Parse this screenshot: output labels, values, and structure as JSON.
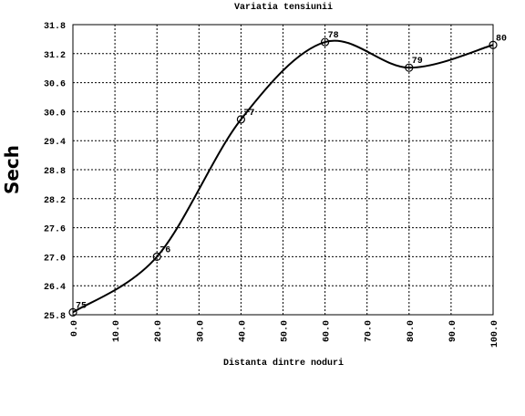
{
  "chart_data": {
    "type": "line",
    "title": "Variatia tensiunii",
    "xlabel": "Distanta dintre noduri",
    "ylabel": "Sech",
    "x": [
      0,
      20,
      40,
      60,
      80,
      100
    ],
    "series": [
      {
        "name": "Sech",
        "color": "#000000",
        "values": [
          25.85,
          27.0,
          29.84,
          31.44,
          30.91,
          31.38
        ],
        "point_labels": [
          "75",
          "76",
          "77",
          "78",
          "79",
          "80"
        ]
      }
    ],
    "xlim": [
      0,
      100
    ],
    "xticks": [
      {
        "value": 0,
        "label": "0.0"
      },
      {
        "value": 10,
        "label": "10.0"
      },
      {
        "value": 20,
        "label": "20.0"
      },
      {
        "value": 30,
        "label": "30.0"
      },
      {
        "value": 40,
        "label": "40.0"
      },
      {
        "value": 50,
        "label": "50.0"
      },
      {
        "value": 60,
        "label": "60.0"
      },
      {
        "value": 70,
        "label": "70.0"
      },
      {
        "value": 80,
        "label": "80.0"
      },
      {
        "value": 90,
        "label": "90.0"
      },
      {
        "value": 100,
        "label": "100.0"
      }
    ],
    "ylim": [
      25.8,
      31.8
    ],
    "yticks": [
      25.8,
      26.4,
      {
        "value": 27,
        "label": "27.0"
      },
      27.6,
      28.2,
      28.8,
      29.4,
      {
        "value": 30,
        "label": "30.0"
      },
      30.6,
      31.2,
      31.8
    ],
    "grid": true,
    "smooth": true
  }
}
